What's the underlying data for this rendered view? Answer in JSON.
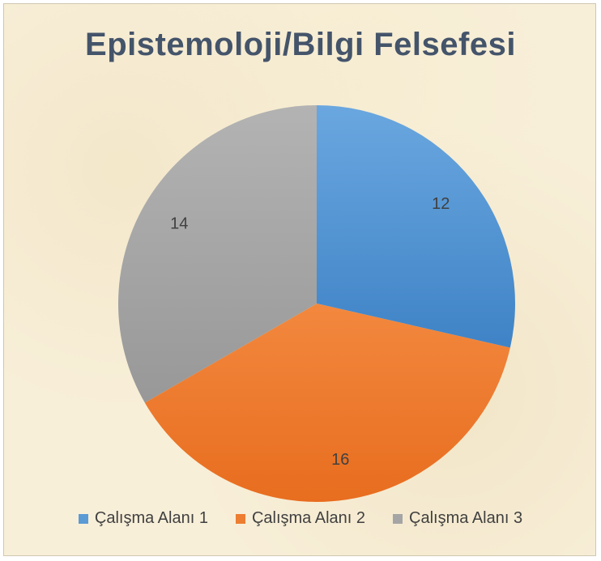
{
  "chart_data": {
    "type": "pie",
    "title": "Epistemoloji/Bilgi Felsefesi",
    "categories": [
      "Çalışma Alanı 1",
      "Çalışma Alanı 2",
      "Çalışma Alanı 3"
    ],
    "values": [
      12,
      16,
      14
    ],
    "colors": [
      "#5b9bd5",
      "#ed7d31",
      "#a5a5a5"
    ],
    "data_labels": [
      "12",
      "16",
      "14"
    ],
    "legend_position": "bottom",
    "start_angle": "12 o'clock",
    "direction": "clockwise"
  }
}
